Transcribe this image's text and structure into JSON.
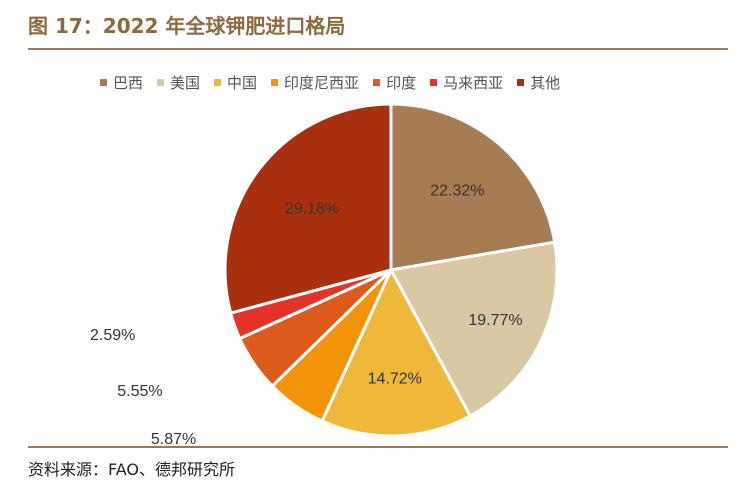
{
  "title": "图 17：2022 年全球钾肥进口格局",
  "source": "资料来源：FAO、德邦研究所",
  "chart_data": {
    "type": "pie",
    "title": "图 17：2022 年全球钾肥进口格局",
    "legend_position": "top",
    "slices": [
      {
        "label": "巴西",
        "value": 22.32,
        "display": "22.32%",
        "color": "#a67c52"
      },
      {
        "label": "美国",
        "value": 19.77,
        "display": "19.77%",
        "color": "#dac7a4"
      },
      {
        "label": "中国",
        "value": 14.72,
        "display": "14.72%",
        "color": "#f0b83a"
      },
      {
        "label": "印度尼西亚",
        "value": 5.87,
        "display": "5.87%",
        "color": "#f39408"
      },
      {
        "label": "印度",
        "value": 5.55,
        "display": "5.55%",
        "color": "#dc5a1c"
      },
      {
        "label": "马来西亚",
        "value": 2.59,
        "display": "2.59%",
        "color": "#e5332a"
      },
      {
        "label": "其他",
        "value": 29.18,
        "display": "29.18%",
        "color": "#a9300f"
      }
    ]
  }
}
